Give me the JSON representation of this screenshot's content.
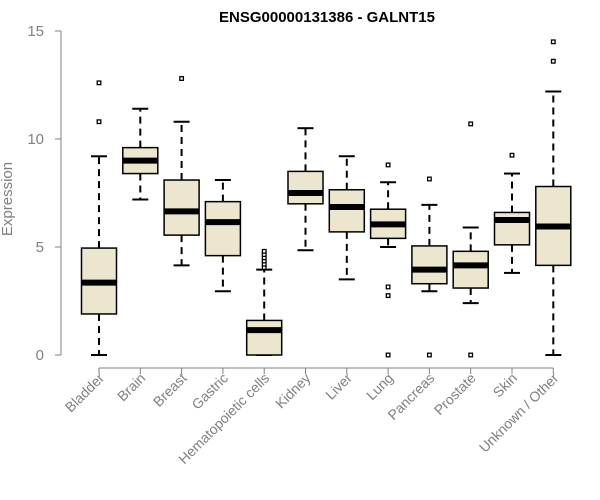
{
  "chart_data": {
    "type": "boxplot",
    "title": "ENSG00000131386 - GALNT15",
    "xlabel": "",
    "ylabel": "Expression",
    "ylim": [
      0,
      15
    ],
    "yticks": [
      0,
      5,
      10,
      15
    ],
    "box_fill": "#ede6cf",
    "line_color": "#000000",
    "axis_color": "#808080",
    "categories": [
      "Bladder",
      "Brain",
      "Breast",
      "Gastric",
      "Hematopoietic cells",
      "Kidney",
      "Liver",
      "Lung",
      "Pancreas",
      "Prostate",
      "Skin",
      "Unknown / Other"
    ],
    "boxes": [
      {
        "whisker_low": 0.0,
        "q1": 1.9,
        "median": 3.35,
        "q3": 4.95,
        "whisker_high": 9.2,
        "outliers": [
          10.8,
          12.6
        ]
      },
      {
        "whisker_low": 7.2,
        "q1": 8.4,
        "median": 9.0,
        "q3": 9.6,
        "whisker_high": 11.4,
        "outliers": []
      },
      {
        "whisker_low": 4.15,
        "q1": 5.55,
        "median": 6.65,
        "q3": 8.1,
        "whisker_high": 10.8,
        "outliers": [
          12.8
        ]
      },
      {
        "whisker_low": 2.95,
        "q1": 4.6,
        "median": 6.15,
        "q3": 7.1,
        "whisker_high": 8.1,
        "outliers": []
      },
      {
        "whisker_low": 0.0,
        "q1": 0.0,
        "median": 1.15,
        "q3": 1.6,
        "whisker_high": 3.95,
        "outliers": [
          4.05,
          4.2,
          4.35,
          4.5,
          4.65,
          4.8
        ]
      },
      {
        "whisker_low": 4.85,
        "q1": 7.0,
        "median": 7.5,
        "q3": 8.5,
        "whisker_high": 10.5,
        "outliers": []
      },
      {
        "whisker_low": 3.5,
        "q1": 5.7,
        "median": 6.85,
        "q3": 7.65,
        "whisker_high": 9.2,
        "outliers": []
      },
      {
        "whisker_low": 5.0,
        "q1": 5.4,
        "median": 6.05,
        "q3": 6.75,
        "whisker_high": 8.0,
        "outliers": [
          0.0,
          2.75,
          3.15,
          8.8
        ]
      },
      {
        "whisker_low": 2.95,
        "q1": 3.3,
        "median": 3.95,
        "q3": 5.05,
        "whisker_high": 6.95,
        "outliers": [
          0.0,
          8.15
        ]
      },
      {
        "whisker_low": 2.4,
        "q1": 3.1,
        "median": 4.15,
        "q3": 4.8,
        "whisker_high": 5.9,
        "outliers": [
          0.0,
          10.7
        ]
      },
      {
        "whisker_low": 3.8,
        "q1": 5.1,
        "median": 6.25,
        "q3": 6.6,
        "whisker_high": 8.4,
        "outliers": [
          9.25
        ]
      },
      {
        "whisker_low": 0.0,
        "q1": 4.15,
        "median": 5.95,
        "q3": 7.8,
        "whisker_high": 12.2,
        "outliers": [
          13.6,
          14.5
        ]
      }
    ]
  }
}
